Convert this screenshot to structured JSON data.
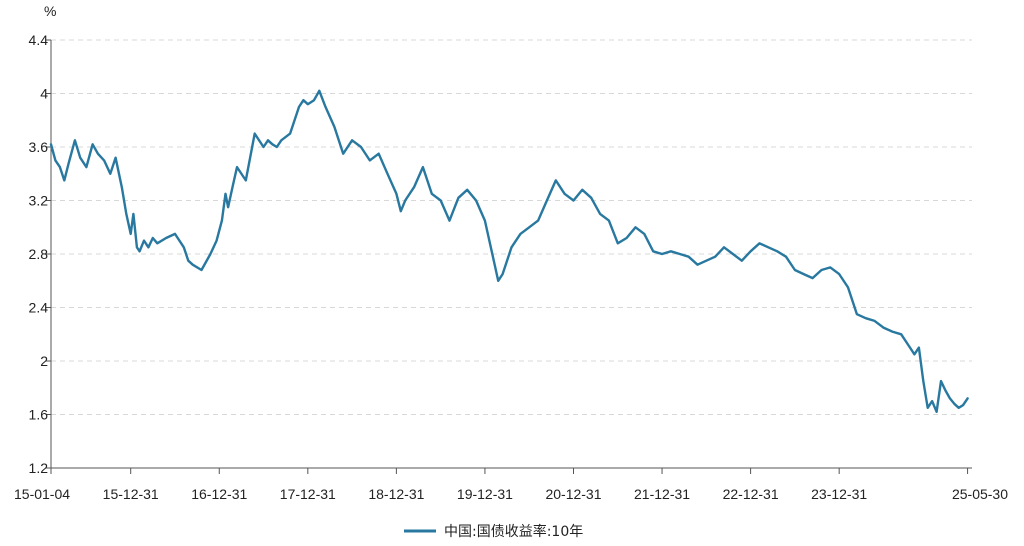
{
  "chart_data": {
    "type": "line",
    "title": "",
    "ylabel": "%",
    "xlabel": "",
    "ylim": [
      1.2,
      4.4
    ],
    "yticks": [
      "1.2",
      "1.6",
      "2",
      "2.4",
      "2.8",
      "3.2",
      "3.6",
      "4",
      "4.4"
    ],
    "xtick_labels": [
      "15-01-04",
      "15-12-31",
      "16-12-31",
      "17-12-31",
      "18-12-31",
      "19-12-31",
      "20-12-31",
      "21-12-31",
      "22-12-31",
      "23-12-31",
      "25-05-30"
    ],
    "xtick_positions": [
      0,
      0.9,
      1.9,
      2.9,
      3.9,
      4.9,
      5.9,
      6.9,
      7.9,
      8.9,
      10.35
    ],
    "x_range": [
      0,
      10.4
    ],
    "grid": true,
    "legend_position": "bottom-center",
    "color": "#2878a0",
    "series": [
      {
        "name": "中国:国债收益率:10年",
        "x": [
          0.0,
          0.05,
          0.1,
          0.15,
          0.2,
          0.27,
          0.33,
          0.4,
          0.47,
          0.53,
          0.6,
          0.67,
          0.73,
          0.8,
          0.85,
          0.9,
          0.93,
          0.97,
          1.0,
          1.05,
          1.1,
          1.15,
          1.2,
          1.3,
          1.4,
          1.5,
          1.55,
          1.6,
          1.7,
          1.8,
          1.87,
          1.93,
          1.97,
          2.0,
          2.05,
          2.1,
          2.2,
          2.3,
          2.4,
          2.45,
          2.5,
          2.55,
          2.6,
          2.7,
          2.8,
          2.85,
          2.9,
          2.97,
          3.03,
          3.1,
          3.2,
          3.3,
          3.4,
          3.5,
          3.6,
          3.7,
          3.8,
          3.9,
          3.95,
          4.0,
          4.1,
          4.2,
          4.3,
          4.4,
          4.5,
          4.6,
          4.7,
          4.8,
          4.9,
          5.0,
          5.05,
          5.1,
          5.2,
          5.3,
          5.4,
          5.5,
          5.6,
          5.7,
          5.8,
          5.9,
          6.0,
          6.1,
          6.2,
          6.3,
          6.4,
          6.5,
          6.6,
          6.7,
          6.8,
          6.9,
          7.0,
          7.1,
          7.2,
          7.3,
          7.4,
          7.5,
          7.6,
          7.7,
          7.8,
          7.9,
          8.0,
          8.1,
          8.2,
          8.3,
          8.4,
          8.5,
          8.6,
          8.7,
          8.8,
          8.9,
          9.0,
          9.1,
          9.2,
          9.3,
          9.4,
          9.5,
          9.6,
          9.7,
          9.75,
          9.8,
          9.85,
          9.9,
          9.95,
          10.0,
          10.05,
          10.1,
          10.15,
          10.2,
          10.25,
          10.3,
          10.35
        ],
        "values": [
          3.62,
          3.5,
          3.45,
          3.35,
          3.48,
          3.65,
          3.52,
          3.45,
          3.62,
          3.55,
          3.5,
          3.4,
          3.52,
          3.3,
          3.1,
          2.95,
          3.1,
          2.85,
          2.82,
          2.9,
          2.85,
          2.92,
          2.88,
          2.92,
          2.95,
          2.85,
          2.75,
          2.72,
          2.68,
          2.8,
          2.9,
          3.05,
          3.25,
          3.15,
          3.3,
          3.45,
          3.35,
          3.7,
          3.6,
          3.65,
          3.62,
          3.6,
          3.65,
          3.7,
          3.9,
          3.95,
          3.92,
          3.95,
          4.02,
          3.9,
          3.75,
          3.55,
          3.65,
          3.6,
          3.5,
          3.55,
          3.4,
          3.25,
          3.12,
          3.2,
          3.3,
          3.45,
          3.25,
          3.2,
          3.05,
          3.22,
          3.28,
          3.2,
          3.05,
          2.75,
          2.6,
          2.65,
          2.85,
          2.95,
          3.0,
          3.05,
          3.2,
          3.35,
          3.25,
          3.2,
          3.28,
          3.22,
          3.1,
          3.05,
          2.88,
          2.92,
          3.0,
          2.95,
          2.82,
          2.8,
          2.82,
          2.8,
          2.78,
          2.72,
          2.75,
          2.78,
          2.85,
          2.8,
          2.75,
          2.82,
          2.88,
          2.85,
          2.82,
          2.78,
          2.68,
          2.65,
          2.62,
          2.68,
          2.7,
          2.65,
          2.55,
          2.35,
          2.32,
          2.3,
          2.25,
          2.22,
          2.2,
          2.1,
          2.05,
          2.1,
          1.85,
          1.65,
          1.7,
          1.62,
          1.85,
          1.78,
          1.72,
          1.68,
          1.65,
          1.67,
          1.72
        ]
      }
    ]
  }
}
